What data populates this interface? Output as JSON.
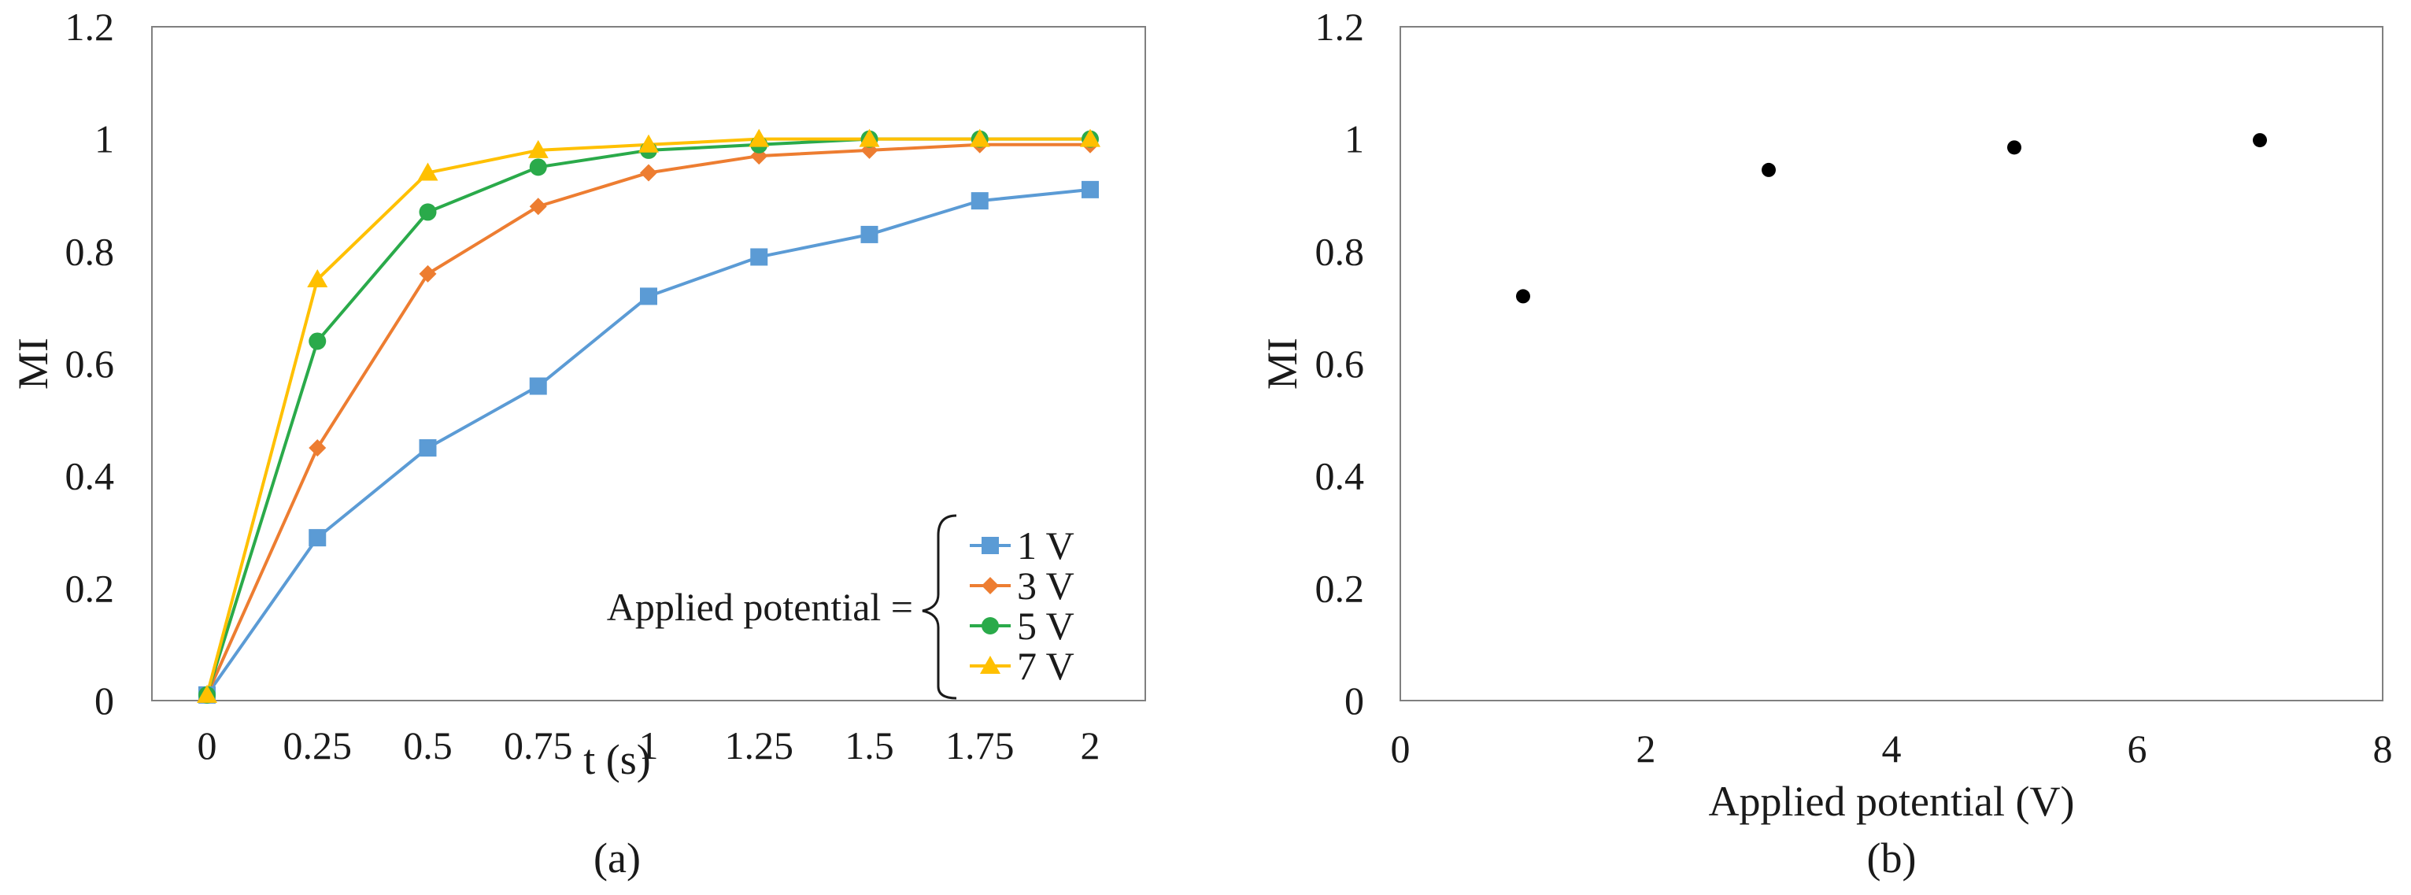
{
  "chart_data": [
    {
      "type": "line",
      "panel_label": "(a)",
      "xlabel": "t (s)",
      "ylabel": "MI",
      "categories": [
        "0",
        "0.25",
        "0.5",
        "0.75",
        "1",
        "1.25",
        "1.5",
        "1.75",
        "2"
      ],
      "ylim": [
        0,
        1.2
      ],
      "yticks": [
        "0",
        "0.2",
        "0.4",
        "0.6",
        "0.8",
        "1",
        "1.2"
      ],
      "legend_prefix": "Applied potential =",
      "legend_position": "bottom-right",
      "series": [
        {
          "name": "1 V",
          "color": "#5B9BD5",
          "marker": "square",
          "values": [
            0.01,
            0.29,
            0.45,
            0.56,
            0.72,
            0.79,
            0.83,
            0.89,
            0.91
          ]
        },
        {
          "name": "3 V",
          "color": "#ED7D31",
          "marker": "diamond",
          "values": [
            0.01,
            0.45,
            0.76,
            0.88,
            0.94,
            0.97,
            0.98,
            0.99,
            0.99
          ]
        },
        {
          "name": "5 V",
          "color": "#2AAA4A",
          "marker": "circle",
          "values": [
            0.01,
            0.64,
            0.87,
            0.95,
            0.98,
            0.99,
            1.0,
            1.0,
            1.0
          ]
        },
        {
          "name": "7 V",
          "color": "#FFC000",
          "marker": "triangle",
          "values": [
            0.01,
            0.75,
            0.94,
            0.98,
            0.99,
            1.0,
            1.0,
            1.0,
            1.0
          ]
        }
      ]
    },
    {
      "type": "scatter",
      "panel_label": "(b)",
      "xlabel": "Applied potential (V)",
      "ylabel": "MI",
      "xlim": [
        0,
        8
      ],
      "xticks": [
        "0",
        "2",
        "4",
        "6",
        "8"
      ],
      "ylim": [
        0,
        1.2
      ],
      "yticks": [
        "0",
        "0.2",
        "0.4",
        "0.6",
        "0.8",
        "1",
        "1.2"
      ],
      "marker_color": "#000000",
      "points": [
        {
          "x": 1,
          "y": 0.72
        },
        {
          "x": 3,
          "y": 0.945
        },
        {
          "x": 5,
          "y": 0.985
        },
        {
          "x": 7,
          "y": 0.998
        }
      ]
    }
  ]
}
